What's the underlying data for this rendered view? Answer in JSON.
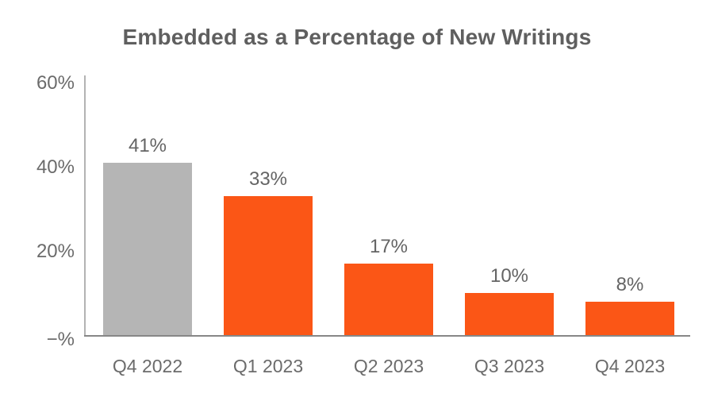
{
  "chart_data": {
    "type": "bar",
    "title": "Embedded as a Percentage of New Writings",
    "categories": [
      "Q4 2022",
      "Q1 2023",
      "Q2 2023",
      "Q3 2023",
      "Q4 2023"
    ],
    "values": [
      41,
      33,
      17,
      10,
      8
    ],
    "value_labels": [
      "41%",
      "33%",
      "17%",
      "10%",
      "8%"
    ],
    "bar_colors": [
      "#b5b5b5",
      "#fb5616",
      "#fb5616",
      "#fb5616",
      "#fb5616"
    ],
    "y_ticks": [
      {
        "value": 60,
        "label": "60%"
      },
      {
        "value": 40,
        "label": "40%"
      },
      {
        "value": 20,
        "label": "20%"
      },
      {
        "value": 0,
        "label": "−%"
      }
    ],
    "ylim": [
      0,
      60
    ],
    "xlabel": "",
    "ylabel": "",
    "grid": false,
    "legend": null,
    "colors": {
      "highlight_bar": "#fb5616",
      "muted_bar": "#b5b5b5",
      "y_axis_line": "#b3b3b3",
      "x_axis_line": "#878787",
      "label_text": "#6b6b6b",
      "title_text": "#5f5f5f"
    }
  }
}
